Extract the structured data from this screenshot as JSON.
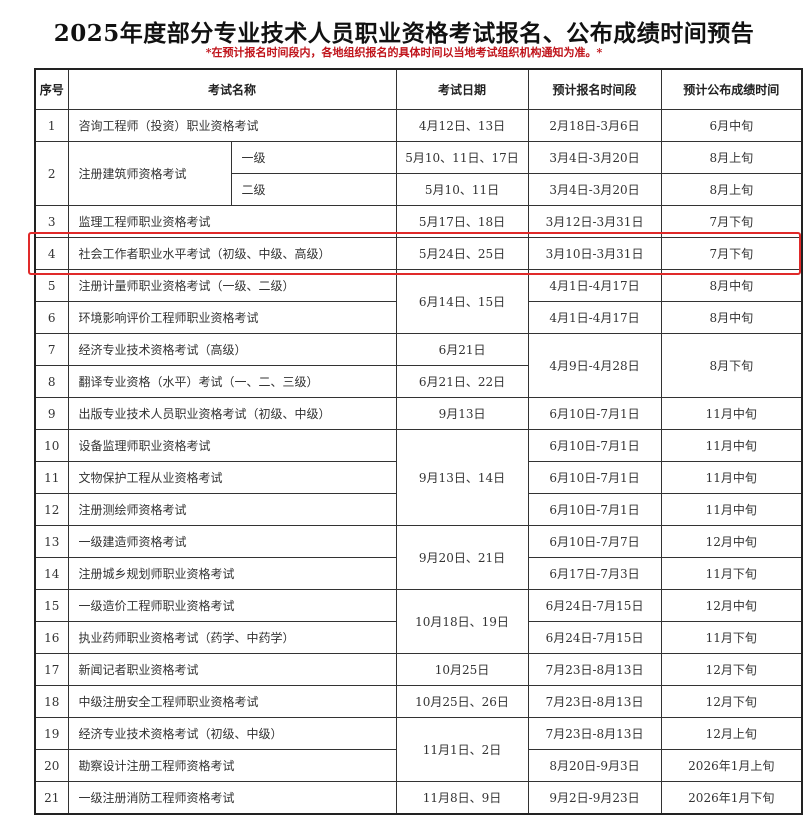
{
  "title": "2025年度部分专业技术人员职业资格考试报名、公布成绩时间预告",
  "note": "*在预计报名时间段内，各地组织报名的具体时间以当地考试组织机构通知为准。*",
  "highlight_color": "#e02a2a",
  "headers": [
    "序号",
    "考试名称",
    "考试日期",
    "预计报名时间段",
    "预计公布成绩时间"
  ],
  "rows": [
    {
      "seq": "1",
      "name": "咨询工程师（投资）职业资格考试",
      "date": "4月12日、13日",
      "reg": "2月18日-3月6日",
      "result": "6月中旬"
    },
    {
      "seq": "2",
      "name": "注册建筑师资格考试",
      "sub": "一级",
      "date": "5月10、11日、17日",
      "reg": "3月4日-3月20日",
      "result": "8月上旬"
    },
    {
      "seq": null,
      "name": null,
      "sub": "二级",
      "date": "5月10、11日",
      "reg": "3月4日-3月20日",
      "result": "8月上旬"
    },
    {
      "seq": "3",
      "name": "监理工程师职业资格考试",
      "date": "5月17日、18日",
      "reg": "3月12日-3月31日",
      "result": "7月下旬"
    },
    {
      "seq": "4",
      "name": "社会工作者职业水平考试（初级、中级、高级）",
      "date": "5月24日、25日",
      "reg": "3月10日-3月31日",
      "result": "7月下旬",
      "highlighted": true
    },
    {
      "seq": "5",
      "name": "注册计量师职业资格考试（一级、二级）",
      "date": "6月14日、15日",
      "reg": "4月1日-4月17日",
      "result": "8月中旬"
    },
    {
      "seq": "6",
      "name": "环境影响评价工程师职业资格考试",
      "date": null,
      "reg": "4月1日-4月17日",
      "result": "8月中旬"
    },
    {
      "seq": "7",
      "name": "经济专业技术资格考试（高级）",
      "date": "6月21日",
      "reg": "4月9日-4月28日",
      "result": "8月下旬"
    },
    {
      "seq": "8",
      "name": "翻译专业资格（水平）考试（一、二、三级）",
      "date": "6月21日、22日",
      "reg": null,
      "result": null
    },
    {
      "seq": "9",
      "name": "出版专业技术人员职业资格考试（初级、中级）",
      "date": "9月13日",
      "reg": "6月10日-7月1日",
      "result": "11月中旬"
    },
    {
      "seq": "10",
      "name": "设备监理师职业资格考试",
      "date": "9月13日、14日",
      "reg": "6月10日-7月1日",
      "result": "11月中旬"
    },
    {
      "seq": "11",
      "name": "文物保护工程从业资格考试",
      "date": null,
      "reg": "6月10日-7月1日",
      "result": "11月中旬"
    },
    {
      "seq": "12",
      "name": "注册测绘师资格考试",
      "date": null,
      "reg": "6月10日-7月1日",
      "result": "11月中旬"
    },
    {
      "seq": "13",
      "name": "一级建造师资格考试",
      "date": "9月20日、21日",
      "reg": "6月10日-7月7日",
      "result": "12月中旬"
    },
    {
      "seq": "14",
      "name": "注册城乡规划师职业资格考试",
      "date": null,
      "reg": "6月17日-7月3日",
      "result": "11月下旬"
    },
    {
      "seq": "15",
      "name": "一级造价工程师职业资格考试",
      "date": "10月18日、19日",
      "reg": "6月24日-7月15日",
      "result": "12月中旬"
    },
    {
      "seq": "16",
      "name": "执业药师职业资格考试（药学、中药学）",
      "date": null,
      "reg": "6月24日-7月15日",
      "result": "11月下旬"
    },
    {
      "seq": "17",
      "name": "新闻记者职业资格考试",
      "date": "10月25日",
      "reg": "7月23日-8月13日",
      "result": "12月下旬"
    },
    {
      "seq": "18",
      "name": "中级注册安全工程师职业资格考试",
      "date": "10月25日、26日",
      "reg": "7月23日-8月13日",
      "result": "12月下旬"
    },
    {
      "seq": "19",
      "name": "经济专业技术资格考试（初级、中级）",
      "date": "11月1日、2日",
      "reg": "7月23日-8月13日",
      "result": "12月上旬"
    },
    {
      "seq": "20",
      "name": "勘察设计注册工程师资格考试",
      "date": null,
      "reg": "8月20日-9月3日",
      "result": "2026年1月上旬"
    },
    {
      "seq": "21",
      "name": "一级注册消防工程师资格考试",
      "date": "11月8日、9日",
      "reg": "9月2日-9月23日",
      "result": "2026年1月下旬"
    }
  ]
}
